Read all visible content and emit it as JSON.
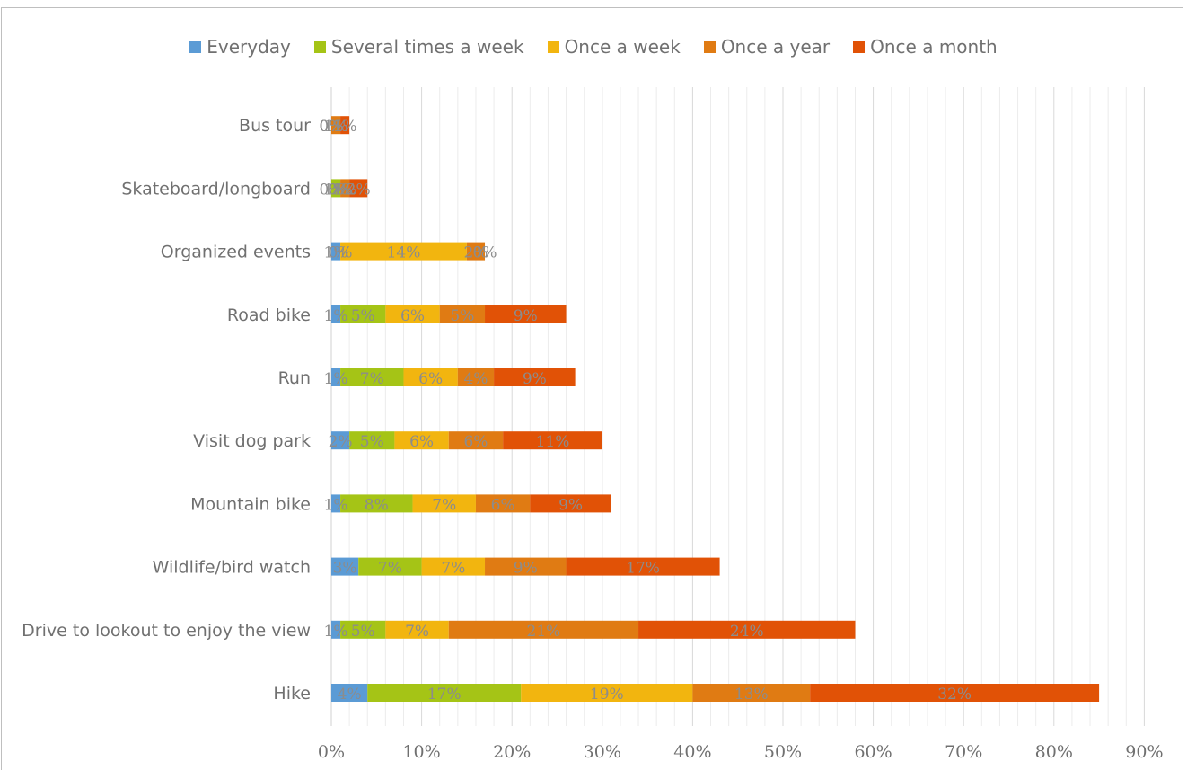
{
  "chart_data": {
    "type": "bar",
    "orientation": "horizontal",
    "stacked": true,
    "categories": [
      "Hike",
      "Drive to lookout to enjoy the view",
      "Wildlife/bird watch",
      "Mountain bike",
      "Visit dog park",
      "Run",
      "Road bike",
      "Organized events",
      "Skateboard/longboard",
      "Bus tour"
    ],
    "series": [
      {
        "name": "Everyday",
        "color": "#5b9bd5",
        "values": [
          4,
          1,
          3,
          1,
          2,
          1,
          1,
          1,
          0,
          0
        ]
      },
      {
        "name": "Several times a week",
        "color": "#a5c416",
        "values": [
          17,
          5,
          7,
          8,
          5,
          7,
          5,
          0,
          1,
          0
        ]
      },
      {
        "name": "Once a week",
        "color": "#f2b50f",
        "values": [
          19,
          7,
          7,
          7,
          6,
          6,
          6,
          14,
          0,
          0
        ]
      },
      {
        "name": "Once a year",
        "color": "#e07b13",
        "values": [
          13,
          21,
          9,
          6,
          6,
          4,
          5,
          2,
          1,
          1
        ]
      },
      {
        "name": "Once a month",
        "color": "#e15206",
        "values": [
          32,
          24,
          17,
          9,
          11,
          9,
          9,
          0,
          2,
          1
        ]
      }
    ],
    "tick_labels": [
      "0%",
      "10%",
      "20%",
      "30%",
      "40%",
      "50%",
      "60%",
      "70%",
      "80%",
      "90%"
    ],
    "xlim": [
      0,
      90
    ],
    "legend_position": "top",
    "grid": true
  }
}
